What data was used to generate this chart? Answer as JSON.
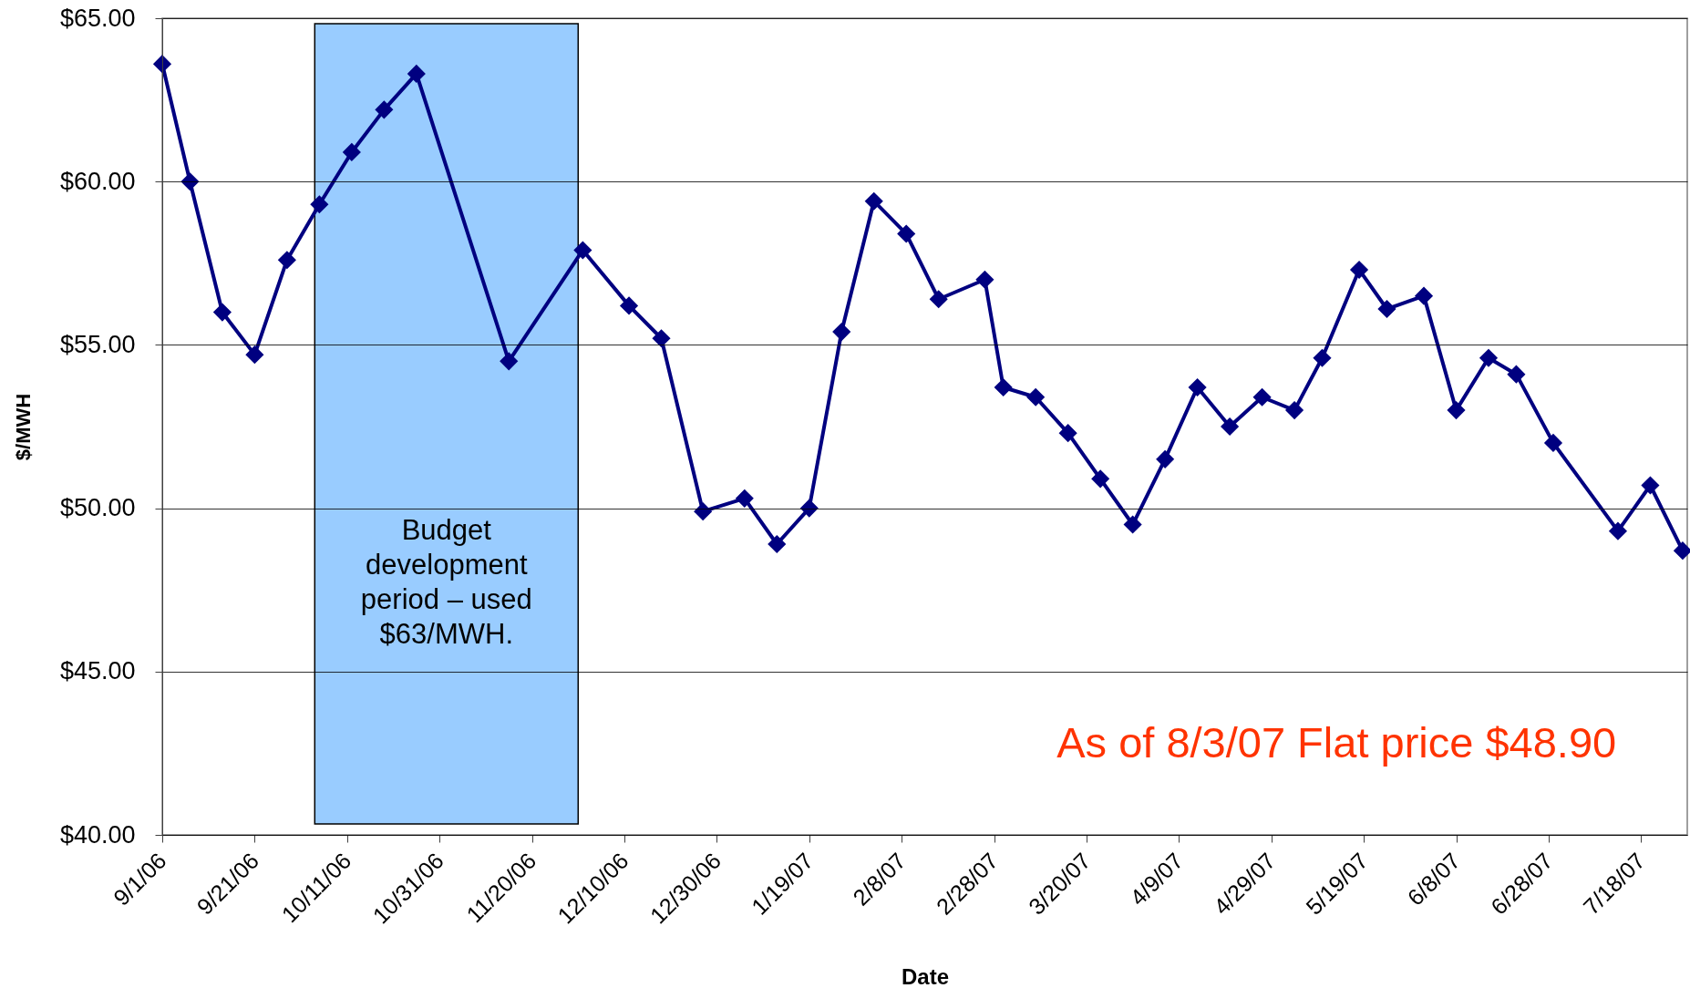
{
  "chart_data": {
    "type": "line",
    "xlabel": "Date",
    "ylabel": "$/MWH",
    "x": [
      "2006-09-01",
      "2006-09-07",
      "2006-09-14",
      "2006-09-21",
      "2006-09-28",
      "2006-10-05",
      "2006-10-12",
      "2006-10-19",
      "2006-10-26",
      "2006-11-15",
      "2006-12-01",
      "2006-12-11",
      "2006-12-18",
      "2006-12-27",
      "2007-01-05",
      "2007-01-12",
      "2007-01-19",
      "2007-01-26",
      "2007-02-02",
      "2007-02-09",
      "2007-02-16",
      "2007-02-26",
      "2007-03-02",
      "2007-03-09",
      "2007-03-16",
      "2007-03-23",
      "2007-03-30",
      "2007-04-06",
      "2007-04-13",
      "2007-04-20",
      "2007-04-27",
      "2007-05-04",
      "2007-05-10",
      "2007-05-18",
      "2007-05-24",
      "2007-06-01",
      "2007-06-08",
      "2007-06-15",
      "2007-06-21",
      "2007-06-29",
      "2007-07-13",
      "2007-07-20",
      "2007-07-27"
    ],
    "series": [
      {
        "color": "#000080",
        "values": [
          63.6,
          60.0,
          56.0,
          54.7,
          57.6,
          59.3,
          60.9,
          62.2,
          63.3,
          54.5,
          57.9,
          56.2,
          55.2,
          49.9,
          50.3,
          48.9,
          50.0,
          55.4,
          59.4,
          58.4,
          56.4,
          57.0,
          53.7,
          53.4,
          52.3,
          50.9,
          49.5,
          51.5,
          53.7,
          52.5,
          53.4,
          53.0,
          54.6,
          57.3,
          56.1,
          56.5,
          53.0,
          54.6,
          54.1,
          52.0,
          49.3,
          50.7,
          48.7
        ]
      }
    ],
    "xlim": [
      "2006-09-01",
      "2007-07-28"
    ],
    "xticks": [
      {
        "value": "2006-09-01",
        "label": "9/1/06"
      },
      {
        "value": "2006-09-21",
        "label": "9/21/06"
      },
      {
        "value": "2006-10-11",
        "label": "10/11/06"
      },
      {
        "value": "2006-10-31",
        "label": "10/31/06"
      },
      {
        "value": "2006-11-20",
        "label": "11/20/06"
      },
      {
        "value": "2006-12-10",
        "label": "12/10/06"
      },
      {
        "value": "2006-12-30",
        "label": "12/30/06"
      },
      {
        "value": "2007-01-19",
        "label": "1/19/07"
      },
      {
        "value": "2007-02-08",
        "label": "2/8/07"
      },
      {
        "value": "2007-02-28",
        "label": "2/28/07"
      },
      {
        "value": "2007-03-20",
        "label": "3/20/07"
      },
      {
        "value": "2007-04-09",
        "label": "4/9/07"
      },
      {
        "value": "2007-04-29",
        "label": "4/29/07"
      },
      {
        "value": "2007-05-19",
        "label": "5/19/07"
      },
      {
        "value": "2007-06-08",
        "label": "6/8/07"
      },
      {
        "value": "2007-06-28",
        "label": "6/28/07"
      },
      {
        "value": "2007-07-18",
        "label": "7/18/07"
      }
    ],
    "ylim": [
      40,
      65
    ],
    "yticks": [
      {
        "value": 40,
        "label": "$40.00"
      },
      {
        "value": 45,
        "label": "$45.00"
      },
      {
        "value": 50,
        "label": "$50.00"
      },
      {
        "value": 55,
        "label": "$55.00"
      },
      {
        "value": 60,
        "label": "$60.00"
      },
      {
        "value": 65,
        "label": "$65.00"
      }
    ],
    "grid": "y",
    "marker": "diamond",
    "line_style": "solid",
    "bands": [
      {
        "axis": "x",
        "from": "2006-10-04",
        "to": "2006-11-30",
        "label": "Budget development period – used $63/MWH.",
        "color": "#99ccff"
      }
    ],
    "annotations": [
      "As of 8/3/07 Flat price $48.90"
    ]
  }
}
